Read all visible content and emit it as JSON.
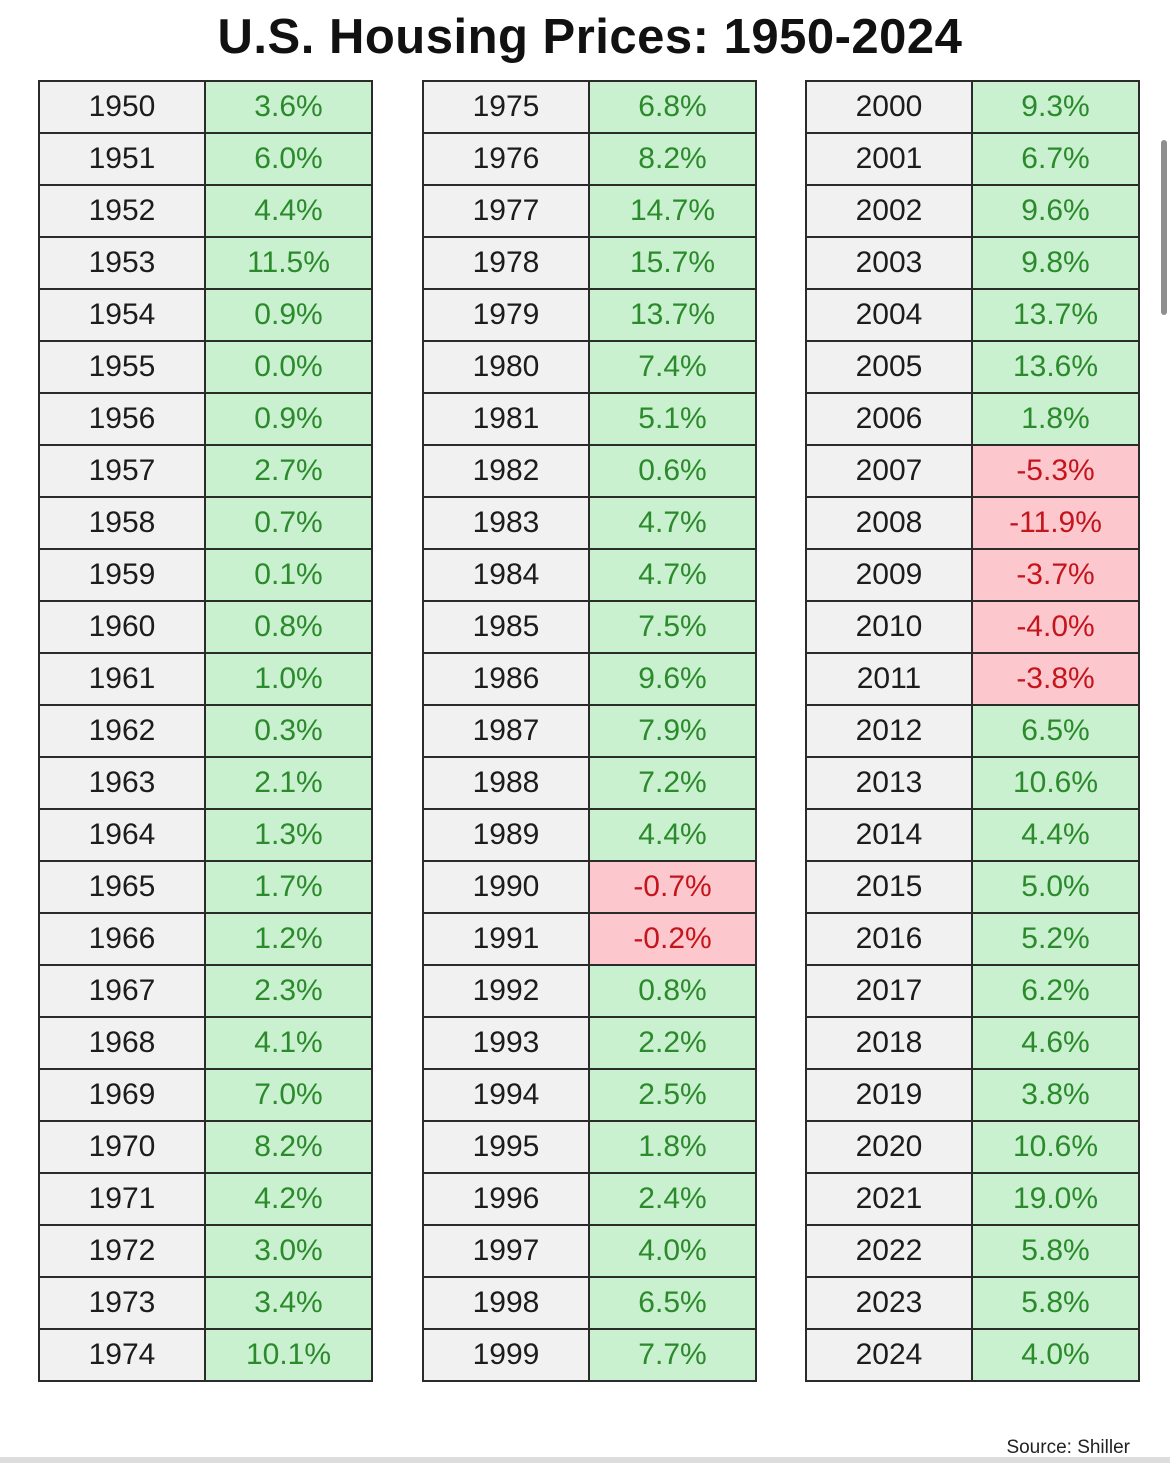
{
  "title": "U.S. Housing Prices: 1950-2024",
  "source": "Source: Shiller",
  "colors": {
    "positive_bg": "#c9f0cf",
    "positive_text": "#2b8a2b",
    "negative_bg": "#fcc8ce",
    "negative_text": "#c4151c",
    "year_bg": "#f1f1f1"
  },
  "chart_data": {
    "type": "table",
    "title": "U.S. Housing Prices: 1950-2024",
    "columns": [
      {
        "rows": [
          {
            "year": "1950",
            "change": "3.6%"
          },
          {
            "year": "1951",
            "change": "6.0%"
          },
          {
            "year": "1952",
            "change": "4.4%"
          },
          {
            "year": "1953",
            "change": "11.5%"
          },
          {
            "year": "1954",
            "change": "0.9%"
          },
          {
            "year": "1955",
            "change": "0.0%"
          },
          {
            "year": "1956",
            "change": "0.9%"
          },
          {
            "year": "1957",
            "change": "2.7%"
          },
          {
            "year": "1958",
            "change": "0.7%"
          },
          {
            "year": "1959",
            "change": "0.1%"
          },
          {
            "year": "1960",
            "change": "0.8%"
          },
          {
            "year": "1961",
            "change": "1.0%"
          },
          {
            "year": "1962",
            "change": "0.3%"
          },
          {
            "year": "1963",
            "change": "2.1%"
          },
          {
            "year": "1964",
            "change": "1.3%"
          },
          {
            "year": "1965",
            "change": "1.7%"
          },
          {
            "year": "1966",
            "change": "1.2%"
          },
          {
            "year": "1967",
            "change": "2.3%"
          },
          {
            "year": "1968",
            "change": "4.1%"
          },
          {
            "year": "1969",
            "change": "7.0%"
          },
          {
            "year": "1970",
            "change": "8.2%"
          },
          {
            "year": "1971",
            "change": "4.2%"
          },
          {
            "year": "1972",
            "change": "3.0%"
          },
          {
            "year": "1973",
            "change": "3.4%"
          },
          {
            "year": "1974",
            "change": "10.1%"
          }
        ]
      },
      {
        "rows": [
          {
            "year": "1975",
            "change": "6.8%"
          },
          {
            "year": "1976",
            "change": "8.2%"
          },
          {
            "year": "1977",
            "change": "14.7%"
          },
          {
            "year": "1978",
            "change": "15.7%"
          },
          {
            "year": "1979",
            "change": "13.7%"
          },
          {
            "year": "1980",
            "change": "7.4%"
          },
          {
            "year": "1981",
            "change": "5.1%"
          },
          {
            "year": "1982",
            "change": "0.6%"
          },
          {
            "year": "1983",
            "change": "4.7%"
          },
          {
            "year": "1984",
            "change": "4.7%"
          },
          {
            "year": "1985",
            "change": "7.5%"
          },
          {
            "year": "1986",
            "change": "9.6%"
          },
          {
            "year": "1987",
            "change": "7.9%"
          },
          {
            "year": "1988",
            "change": "7.2%"
          },
          {
            "year": "1989",
            "change": "4.4%"
          },
          {
            "year": "1990",
            "change": "-0.7%"
          },
          {
            "year": "1991",
            "change": "-0.2%"
          },
          {
            "year": "1992",
            "change": "0.8%"
          },
          {
            "year": "1993",
            "change": "2.2%"
          },
          {
            "year": "1994",
            "change": "2.5%"
          },
          {
            "year": "1995",
            "change": "1.8%"
          },
          {
            "year": "1996",
            "change": "2.4%"
          },
          {
            "year": "1997",
            "change": "4.0%"
          },
          {
            "year": "1998",
            "change": "6.5%"
          },
          {
            "year": "1999",
            "change": "7.7%"
          }
        ]
      },
      {
        "rows": [
          {
            "year": "2000",
            "change": "9.3%"
          },
          {
            "year": "2001",
            "change": "6.7%"
          },
          {
            "year": "2002",
            "change": "9.6%"
          },
          {
            "year": "2003",
            "change": "9.8%"
          },
          {
            "year": "2004",
            "change": "13.7%"
          },
          {
            "year": "2005",
            "change": "13.6%"
          },
          {
            "year": "2006",
            "change": "1.8%"
          },
          {
            "year": "2007",
            "change": "-5.3%"
          },
          {
            "year": "2008",
            "change": "-11.9%"
          },
          {
            "year": "2009",
            "change": "-3.7%"
          },
          {
            "year": "2010",
            "change": "-4.0%"
          },
          {
            "year": "2011",
            "change": "-3.8%"
          },
          {
            "year": "2012",
            "change": "6.5%"
          },
          {
            "year": "2013",
            "change": "10.6%"
          },
          {
            "year": "2014",
            "change": "4.4%"
          },
          {
            "year": "2015",
            "change": "5.0%"
          },
          {
            "year": "2016",
            "change": "5.2%"
          },
          {
            "year": "2017",
            "change": "6.2%"
          },
          {
            "year": "2018",
            "change": "4.6%"
          },
          {
            "year": "2019",
            "change": "3.8%"
          },
          {
            "year": "2020",
            "change": "10.6%"
          },
          {
            "year": "2021",
            "change": "19.0%"
          },
          {
            "year": "2022",
            "change": "5.8%"
          },
          {
            "year": "2023",
            "change": "5.8%"
          },
          {
            "year": "2024",
            "change": "4.0%"
          }
        ]
      }
    ]
  }
}
